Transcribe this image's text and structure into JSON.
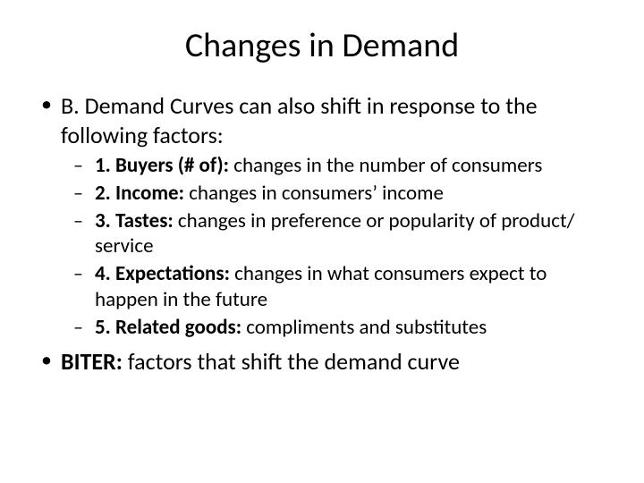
{
  "background_color": "#ffffff",
  "text_color": "#000000",
  "font_family": "Calibri",
  "title": {
    "text": "Changes in Demand",
    "fontsize": 38,
    "align": "center"
  },
  "bullets": {
    "level1_fontsize": 26,
    "level2_fontsize": 23,
    "level1_marker": "•",
    "level2_marker": "–",
    "items": [
      {
        "text": "B. Demand Curves can also shift in response to the following factors:",
        "sub": [
          {
            "bold": "1. Buyers (# of): ",
            "rest": "changes in the number of consumers"
          },
          {
            "bold": "2. Income: ",
            "rest": "changes in consumers’ income"
          },
          {
            "bold": "3. Tastes: ",
            "rest": "changes in preference or popularity of product/ service"
          },
          {
            "bold": "4. Expectations: ",
            "rest": "changes in what consumers expect to happen in the future"
          },
          {
            "bold": "5. Related goods: ",
            "rest": "compliments and substitutes"
          }
        ]
      },
      {
        "bold": "BITER: ",
        "rest": "factors that shift the demand curve"
      }
    ]
  }
}
